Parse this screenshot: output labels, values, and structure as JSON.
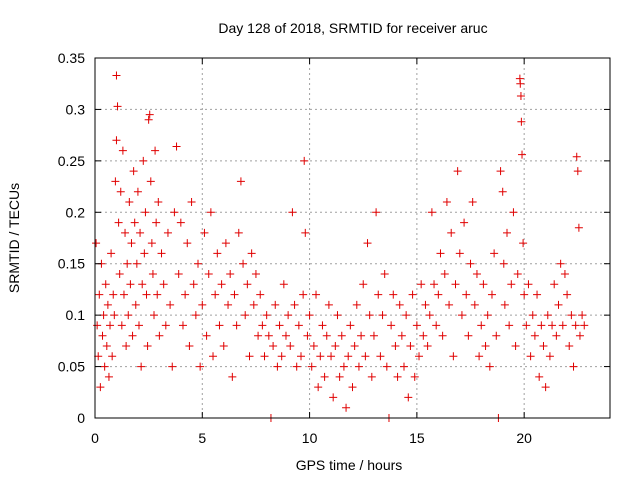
{
  "chart_data": {
    "type": "scatter",
    "title": "Day 128 of 2018, SRMTID for receiver aruc",
    "xlabel": "GPS time / hours",
    "ylabel": "SRMTID / TECUs",
    "xlim": [
      0,
      24
    ],
    "ylim": [
      0,
      0.35
    ],
    "grid": true,
    "marker": "+",
    "marker_color": "#e00000",
    "x_ticks": [
      0,
      5,
      10,
      15,
      20
    ],
    "x_tick_labels": [
      "0",
      "5",
      "10",
      "15",
      "20"
    ],
    "y_ticks": [
      0,
      0.05,
      0.1,
      0.15,
      0.2,
      0.25,
      0.3,
      0.35
    ],
    "y_tick_labels": [
      "0",
      "0.05",
      "0.1",
      "0.15",
      "0.2",
      "0.25",
      "0.3",
      "0.35"
    ],
    "series": [
      {
        "name": "SRMTID",
        "points": [
          [
            0.05,
            0.17
          ],
          [
            0.1,
            0.09
          ],
          [
            0.15,
            0.06
          ],
          [
            0.2,
            0.12
          ],
          [
            0.25,
            0.03
          ],
          [
            0.3,
            0.15
          ],
          [
            0.35,
            0.08
          ],
          [
            0.4,
            0.1
          ],
          [
            0.45,
            0.05
          ],
          [
            0.5,
            0.13
          ],
          [
            0.55,
            0.07
          ],
          [
            0.6,
            0.11
          ],
          [
            0.65,
            0.04
          ],
          [
            0.7,
            0.09
          ],
          [
            0.75,
            0.16
          ],
          [
            0.8,
            0.06
          ],
          [
            0.85,
            0.12
          ],
          [
            0.9,
            0.1
          ],
          [
            0.95,
            0.23
          ],
          [
            1.0,
            0.27
          ],
          [
            1.0,
            0.333
          ],
          [
            1.05,
            0.303
          ],
          [
            1.1,
            0.19
          ],
          [
            1.15,
            0.14
          ],
          [
            1.2,
            0.22
          ],
          [
            1.25,
            0.09
          ],
          [
            1.3,
            0.26
          ],
          [
            1.35,
            0.12
          ],
          [
            1.4,
            0.18
          ],
          [
            1.45,
            0.07
          ],
          [
            1.5,
            0.15
          ],
          [
            1.55,
            0.1
          ],
          [
            1.6,
            0.21
          ],
          [
            1.65,
            0.13
          ],
          [
            1.7,
            0.17
          ],
          [
            1.75,
            0.08
          ],
          [
            1.8,
            0.24
          ],
          [
            1.85,
            0.19
          ],
          [
            1.9,
            0.11
          ],
          [
            1.95,
            0.15
          ],
          [
            2.0,
            0.22
          ],
          [
            2.05,
            0.09
          ],
          [
            2.1,
            0.18
          ],
          [
            2.15,
            0.05
          ],
          [
            2.2,
            0.13
          ],
          [
            2.25,
            0.25
          ],
          [
            2.3,
            0.16
          ],
          [
            2.35,
            0.2
          ],
          [
            2.4,
            0.12
          ],
          [
            2.45,
            0.07
          ],
          [
            2.5,
            0.29
          ],
          [
            2.55,
            0.295
          ],
          [
            2.6,
            0.23
          ],
          [
            2.65,
            0.17
          ],
          [
            2.7,
            0.14
          ],
          [
            2.75,
            0.1
          ],
          [
            2.8,
            0.26
          ],
          [
            2.85,
            0.19
          ],
          [
            2.9,
            0.12
          ],
          [
            2.95,
            0.21
          ],
          [
            3.0,
            0.08
          ],
          [
            3.1,
            0.16
          ],
          [
            3.2,
            0.13
          ],
          [
            3.3,
            0.09
          ],
          [
            3.4,
            0.18
          ],
          [
            3.5,
            0.11
          ],
          [
            3.6,
            0.05
          ],
          [
            3.7,
            0.2
          ],
          [
            3.8,
            0.264
          ],
          [
            3.9,
            0.14
          ],
          [
            4.0,
            0.19
          ],
          [
            4.1,
            0.09
          ],
          [
            4.2,
            0.12
          ],
          [
            4.3,
            0.17
          ],
          [
            4.4,
            0.07
          ],
          [
            4.5,
            0.21
          ],
          [
            4.6,
            0.13
          ],
          [
            4.7,
            0.1
          ],
          [
            4.8,
            0.15
          ],
          [
            4.9,
            0.05
          ],
          [
            5.0,
            0.11
          ],
          [
            5.1,
            0.18
          ],
          [
            5.2,
            0.08
          ],
          [
            5.3,
            0.14
          ],
          [
            5.4,
            0.2
          ],
          [
            5.5,
            0.06
          ],
          [
            5.6,
            0.12
          ],
          [
            5.7,
            0.16
          ],
          [
            5.8,
            0.09
          ],
          [
            5.9,
            0.13
          ],
          [
            6.0,
            0.07
          ],
          [
            6.1,
            0.17
          ],
          [
            6.2,
            0.11
          ],
          [
            6.3,
            0.14
          ],
          [
            6.4,
            0.04
          ],
          [
            6.5,
            0.12
          ],
          [
            6.6,
            0.09
          ],
          [
            6.7,
            0.18
          ],
          [
            6.8,
            0.23
          ],
          [
            6.9,
            0.15
          ],
          [
            7.0,
            0.1
          ],
          [
            7.1,
            0.13
          ],
          [
            7.2,
            0.06
          ],
          [
            7.3,
            0.16
          ],
          [
            7.4,
            0.11
          ],
          [
            7.5,
            0.14
          ],
          [
            7.6,
            0.08
          ],
          [
            7.7,
            0.12
          ],
          [
            7.8,
            0.09
          ],
          [
            7.9,
            0.06
          ],
          [
            8.0,
            0.1
          ],
          [
            8.1,
            0.08
          ],
          [
            8.2,
            0.0
          ],
          [
            8.3,
            0.07
          ],
          [
            8.4,
            0.11
          ],
          [
            8.5,
            0.05
          ],
          [
            8.6,
            0.09
          ],
          [
            8.7,
            0.06
          ],
          [
            8.8,
            0.13
          ],
          [
            8.9,
            0.08
          ],
          [
            9.0,
            0.1
          ],
          [
            9.1,
            0.07
          ],
          [
            9.2,
            0.2
          ],
          [
            9.3,
            0.11
          ],
          [
            9.4,
            0.05
          ],
          [
            9.5,
            0.09
          ],
          [
            9.6,
            0.06
          ],
          [
            9.7,
            0.12
          ],
          [
            9.75,
            0.25
          ],
          [
            9.8,
            0.18
          ],
          [
            9.9,
            0.08
          ],
          [
            10.0,
            0.1
          ],
          [
            10.1,
            0.05
          ],
          [
            10.2,
            0.07
          ],
          [
            10.3,
            0.12
          ],
          [
            10.4,
            0.03
          ],
          [
            10.5,
            0.06
          ],
          [
            10.6,
            0.09
          ],
          [
            10.7,
            0.04
          ],
          [
            10.8,
            0.08
          ],
          [
            10.9,
            0.11
          ],
          [
            11.0,
            0.06
          ],
          [
            11.1,
            0.02
          ],
          [
            11.2,
            0.07
          ],
          [
            11.3,
            0.1
          ],
          [
            11.4,
            0.04
          ],
          [
            11.5,
            0.08
          ],
          [
            11.6,
            0.05
          ],
          [
            11.7,
            0.01
          ],
          [
            11.8,
            0.06
          ],
          [
            11.9,
            0.09
          ],
          [
            12.0,
            0.03
          ],
          [
            12.1,
            0.07
          ],
          [
            12.2,
            0.11
          ],
          [
            12.3,
            0.05
          ],
          [
            12.4,
            0.08
          ],
          [
            12.5,
            0.13
          ],
          [
            12.6,
            0.06
          ],
          [
            12.7,
            0.17
          ],
          [
            12.8,
            0.1
          ],
          [
            12.9,
            0.04
          ],
          [
            13.0,
            0.08
          ],
          [
            13.1,
            0.2
          ],
          [
            13.2,
            0.12
          ],
          [
            13.3,
            0.06
          ],
          [
            13.4,
            0.1
          ],
          [
            13.5,
            0.14
          ],
          [
            13.6,
            0.05
          ],
          [
            13.7,
            0.0
          ],
          [
            13.8,
            0.09
          ],
          [
            13.9,
            0.12
          ],
          [
            14.0,
            0.07
          ],
          [
            14.1,
            0.04
          ],
          [
            14.2,
            0.11
          ],
          [
            14.3,
            0.08
          ],
          [
            14.4,
            0.05
          ],
          [
            14.5,
            0.1
          ],
          [
            14.6,
            0.02
          ],
          [
            14.7,
            0.07
          ],
          [
            14.8,
            0.12
          ],
          [
            14.9,
            0.04
          ],
          [
            15.0,
            0.09
          ],
          [
            15.1,
            0.06
          ],
          [
            15.2,
            0.13
          ],
          [
            15.3,
            0.08
          ],
          [
            15.4,
            0.11
          ],
          [
            15.5,
            0.07
          ],
          [
            15.6,
            0.1
          ],
          [
            15.7,
            0.2
          ],
          [
            15.8,
            0.13
          ],
          [
            15.9,
            0.09
          ],
          [
            16.0,
            0.12
          ],
          [
            16.1,
            0.16
          ],
          [
            16.2,
            0.08
          ],
          [
            16.3,
            0.14
          ],
          [
            16.4,
            0.21
          ],
          [
            16.5,
            0.11
          ],
          [
            16.6,
            0.18
          ],
          [
            16.7,
            0.06
          ],
          [
            16.8,
            0.13
          ],
          [
            16.9,
            0.24
          ],
          [
            17.0,
            0.16
          ],
          [
            17.1,
            0.1
          ],
          [
            17.2,
            0.19
          ],
          [
            17.3,
            0.12
          ],
          [
            17.4,
            0.08
          ],
          [
            17.5,
            0.15
          ],
          [
            17.6,
            0.21
          ],
          [
            17.7,
            0.11
          ],
          [
            17.8,
            0.14
          ],
          [
            17.9,
            0.06
          ],
          [
            18.0,
            0.09
          ],
          [
            18.1,
            0.13
          ],
          [
            18.2,
            0.07
          ],
          [
            18.3,
            0.1
          ],
          [
            18.4,
            0.05
          ],
          [
            18.5,
            0.12
          ],
          [
            18.6,
            0.16
          ],
          [
            18.7,
            0.08
          ],
          [
            18.8,
            0.0
          ],
          [
            18.9,
            0.24
          ],
          [
            19.0,
            0.22
          ],
          [
            19.05,
            0.15
          ],
          [
            19.1,
            0.11
          ],
          [
            19.2,
            0.18
          ],
          [
            19.3,
            0.09
          ],
          [
            19.4,
            0.13
          ],
          [
            19.5,
            0.2
          ],
          [
            19.6,
            0.07
          ],
          [
            19.7,
            0.14
          ],
          [
            19.8,
            0.33
          ],
          [
            19.82,
            0.325
          ],
          [
            19.85,
            0.313
          ],
          [
            19.87,
            0.288
          ],
          [
            19.9,
            0.256
          ],
          [
            19.95,
            0.17
          ],
          [
            20.0,
            0.12
          ],
          [
            20.1,
            0.09
          ],
          [
            20.2,
            0.13
          ],
          [
            20.3,
            0.06
          ],
          [
            20.4,
            0.1
          ],
          [
            20.5,
            0.08
          ],
          [
            20.6,
            0.12
          ],
          [
            20.7,
            0.04
          ],
          [
            20.8,
            0.09
          ],
          [
            20.9,
            0.07
          ],
          [
            21.0,
            0.03
          ],
          [
            21.1,
            0.1
          ],
          [
            21.2,
            0.06
          ],
          [
            21.3,
            0.09
          ],
          [
            21.4,
            0.13
          ],
          [
            21.5,
            0.08
          ],
          [
            21.6,
            0.11
          ],
          [
            21.7,
            0.15
          ],
          [
            21.8,
            0.09
          ],
          [
            21.9,
            0.14
          ],
          [
            22.0,
            0.12
          ],
          [
            22.1,
            0.07
          ],
          [
            22.2,
            0.1
          ],
          [
            22.3,
            0.05
          ],
          [
            22.4,
            0.09
          ],
          [
            22.45,
            0.254
          ],
          [
            22.5,
            0.24
          ],
          [
            22.55,
            0.185
          ],
          [
            22.6,
            0.08
          ],
          [
            22.7,
            0.1
          ],
          [
            22.8,
            0.09
          ]
        ]
      }
    ]
  }
}
